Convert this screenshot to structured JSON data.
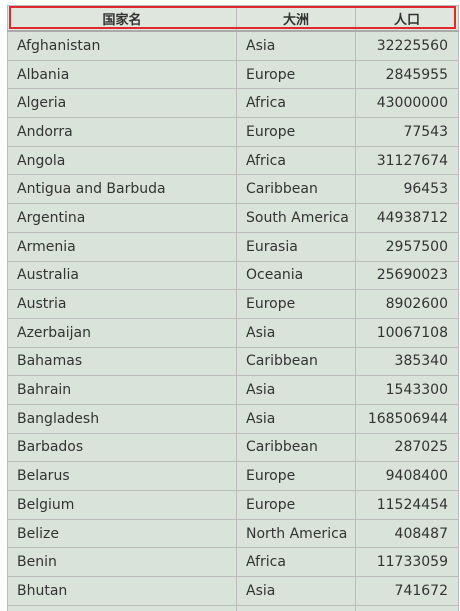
{
  "table": {
    "headers": {
      "country": "国家名",
      "continent": "大洲",
      "population": "人口"
    },
    "rows": [
      {
        "country": "Afghanistan",
        "continent": "Asia",
        "population": "32225560"
      },
      {
        "country": "Albania",
        "continent": "Europe",
        "population": "2845955"
      },
      {
        "country": "Algeria",
        "continent": "Africa",
        "population": "43000000"
      },
      {
        "country": "Andorra",
        "continent": "Europe",
        "population": "77543"
      },
      {
        "country": "Angola",
        "continent": "Africa",
        "population": "31127674"
      },
      {
        "country": "Antigua and Barbuda",
        "continent": "Caribbean",
        "population": "96453"
      },
      {
        "country": "Argentina",
        "continent": "South America",
        "population": "44938712"
      },
      {
        "country": "Armenia",
        "continent": "Eurasia",
        "population": "2957500"
      },
      {
        "country": "Australia",
        "continent": "Oceania",
        "population": "25690023"
      },
      {
        "country": "Austria",
        "continent": "Europe",
        "population": "8902600"
      },
      {
        "country": "Azerbaijan",
        "continent": "Asia",
        "population": "10067108"
      },
      {
        "country": "Bahamas",
        "continent": "Caribbean",
        "population": "385340"
      },
      {
        "country": "Bahrain",
        "continent": "Asia",
        "population": "1543300"
      },
      {
        "country": "Bangladesh",
        "continent": "Asia",
        "population": "168506944"
      },
      {
        "country": "Barbados",
        "continent": "Caribbean",
        "population": "287025"
      },
      {
        "country": "Belarus",
        "continent": "Europe",
        "population": "9408400"
      },
      {
        "country": "Belgium",
        "continent": "Europe",
        "population": "11524454"
      },
      {
        "country": "Belize",
        "continent": "North America",
        "population": "408487"
      },
      {
        "country": "Benin",
        "continent": "Africa",
        "population": "11733059"
      },
      {
        "country": "Bhutan",
        "continent": "Asia",
        "population": "741672"
      },
      {
        "country": "",
        "continent": "",
        "population": ""
      }
    ]
  },
  "colors": {
    "cell_background": "#d9e3da",
    "border": "#bcbcbc",
    "header_highlight": "#e0282e",
    "text": "#333333"
  }
}
